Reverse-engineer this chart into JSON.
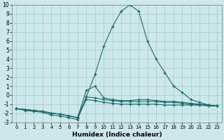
{
  "xlabel": "Humidex (Indice chaleur)",
  "bg_color": "#cce8e8",
  "grid_color": "#aacfcf",
  "line_color": "#1a6b6b",
  "xlim": [
    -0.5,
    23.5
  ],
  "ylim": [
    -3,
    10
  ],
  "xticks": [
    0,
    1,
    2,
    3,
    4,
    5,
    6,
    7,
    8,
    9,
    10,
    11,
    12,
    13,
    14,
    15,
    16,
    17,
    18,
    19,
    20,
    21,
    22,
    23
  ],
  "yticks": [
    -3,
    -2,
    -1,
    0,
    1,
    2,
    3,
    4,
    5,
    6,
    7,
    8,
    9,
    10
  ],
  "curves": [
    {
      "x": [
        0,
        1,
        2,
        3,
        4,
        5,
        6,
        7,
        8,
        9,
        10,
        11,
        12,
        13,
        14,
        15,
        16,
        17,
        18,
        19,
        20,
        21,
        22,
        23
      ],
      "y": [
        -1.5,
        -1.7,
        -1.8,
        -1.9,
        -2.2,
        -2.3,
        -2.5,
        -2.7,
        -0.2,
        2.3,
        5.4,
        7.6,
        9.3,
        10.0,
        9.3,
        6.0,
        4.0,
        2.5,
        1.0,
        0.3,
        -0.5,
        -0.8,
        -1.1,
        -1.2
      ]
    },
    {
      "x": [
        0,
        1,
        2,
        3,
        4,
        5,
        6,
        7,
        8,
        9,
        10,
        11,
        12,
        13,
        14,
        15,
        16,
        17,
        18,
        19,
        20,
        21,
        22,
        23
      ],
      "y": [
        -1.5,
        -1.6,
        -1.7,
        -1.8,
        -2.0,
        -2.1,
        -2.3,
        -2.5,
        0.5,
        1.0,
        -0.3,
        -0.5,
        -0.6,
        -0.6,
        -0.5,
        -0.5,
        -0.6,
        -0.7,
        -0.7,
        -0.8,
        -0.9,
        -1.0,
        -1.1,
        -1.2
      ]
    },
    {
      "x": [
        0,
        1,
        2,
        3,
        4,
        5,
        6,
        7,
        8,
        9,
        10,
        11,
        12,
        13,
        14,
        15,
        16,
        17,
        18,
        19,
        20,
        21,
        22,
        23
      ],
      "y": [
        -1.5,
        -1.6,
        -1.7,
        -1.8,
        -2.0,
        -2.1,
        -2.3,
        -2.5,
        -0.2,
        -0.3,
        -0.5,
        -0.6,
        -0.7,
        -0.7,
        -0.7,
        -0.7,
        -0.7,
        -0.8,
        -0.8,
        -0.9,
        -1.0,
        -1.1,
        -1.1,
        -1.2
      ]
    },
    {
      "x": [
        0,
        1,
        2,
        3,
        4,
        5,
        6,
        7,
        8,
        9,
        10,
        11,
        12,
        13,
        14,
        15,
        16,
        17,
        18,
        19,
        20,
        21,
        22,
        23
      ],
      "y": [
        -1.5,
        -1.6,
        -1.7,
        -1.8,
        -2.0,
        -2.1,
        -2.3,
        -2.5,
        -0.5,
        -0.6,
        -0.8,
        -0.9,
        -1.0,
        -1.0,
        -1.0,
        -1.0,
        -1.0,
        -1.1,
        -1.1,
        -1.1,
        -1.1,
        -1.1,
        -1.2,
        -1.2
      ]
    }
  ]
}
